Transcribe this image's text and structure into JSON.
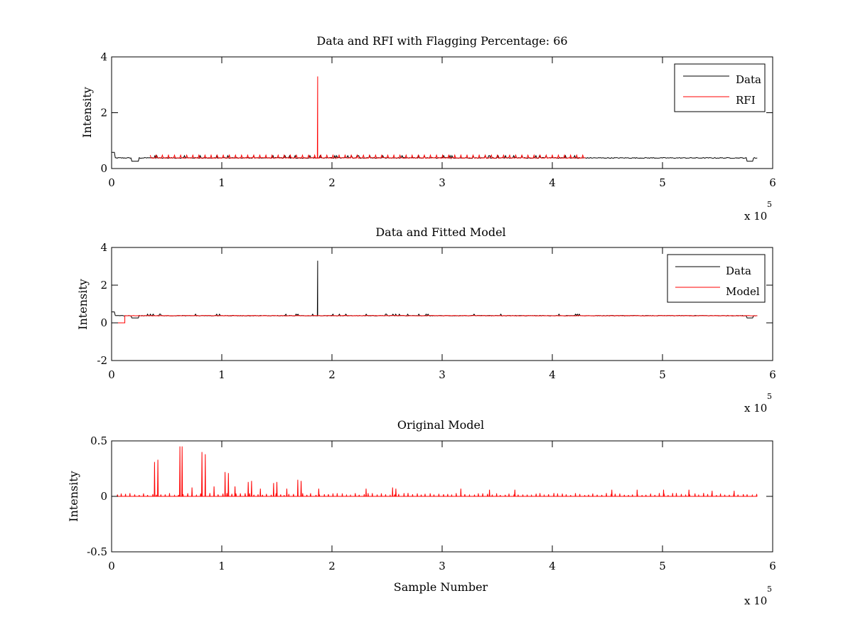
{
  "chart_data": [
    {
      "type": "line",
      "title": "Data and RFI with Flagging Percentage: 66",
      "xlabel": "",
      "ylabel": "Intensity",
      "xlim": [
        0,
        6
      ],
      "ylim": [
        0,
        4
      ],
      "xticks": [
        "0",
        "1",
        "2",
        "3",
        "4",
        "5",
        "6"
      ],
      "yticks": [
        "0",
        "2",
        "4"
      ],
      "x_multiplier": {
        "base": "x 10",
        "exponent": "5"
      },
      "legend": {
        "position": "top-right",
        "entries": [
          "Data",
          "RFI"
        ]
      },
      "series": [
        {
          "name": "Data",
          "color": "#000000",
          "kind": "data",
          "extent": [
            0,
            5.86
          ],
          "baseline": 0.38,
          "dip": true
        },
        {
          "name": "RFI",
          "color": "#ff0000",
          "kind": "rfi",
          "extent": [
            0.35,
            4.3
          ],
          "baseline": 0.38,
          "spike": {
            "x": 1.87,
            "y": 3.3
          }
        }
      ]
    },
    {
      "type": "line",
      "title": "Data and Fitted Model",
      "xlabel": "",
      "ylabel": "Intensity",
      "xlim": [
        0,
        6
      ],
      "ylim": [
        -2,
        4
      ],
      "xticks": [
        "0",
        "1",
        "2",
        "3",
        "4",
        "5",
        "6"
      ],
      "yticks": [
        "-2",
        "0",
        "2",
        "4"
      ],
      "x_multiplier": {
        "base": "x 10",
        "exponent": "5"
      },
      "legend": {
        "position": "top-right",
        "entries": [
          "Data",
          "Model"
        ]
      },
      "series": [
        {
          "name": "Data",
          "color": "#000000",
          "kind": "data",
          "extent": [
            0,
            5.86
          ],
          "baseline": 0.38,
          "dip": true,
          "spike": {
            "x": 1.87,
            "y": 3.3
          }
        },
        {
          "name": "Model",
          "color": "#ff0000",
          "kind": "model",
          "extent": [
            0,
            5.86
          ],
          "baseline": 0.38,
          "start_level": 0.0,
          "step_x": 0.12
        }
      ]
    },
    {
      "type": "line",
      "title": "Original Model",
      "xlabel": "Sample Number",
      "ylabel": "Intensity",
      "xlim": [
        0,
        6
      ],
      "ylim": [
        -0.5,
        0.5
      ],
      "xticks": [
        "0",
        "1",
        "2",
        "3",
        "4",
        "5",
        "6"
      ],
      "yticks": [
        "-0.5",
        "0",
        "0.5"
      ],
      "x_multiplier": {
        "base": "x 10",
        "exponent": "5"
      },
      "series": [
        {
          "name": "Original Model",
          "color": "#ff0000",
          "kind": "spikes",
          "extent": [
            0,
            5.86
          ],
          "baseline": 0.0,
          "peaks": [
            {
              "x": 0.39,
              "y": 0.31
            },
            {
              "x": 0.42,
              "y": 0.33
            },
            {
              "x": 0.62,
              "y": 0.45
            },
            {
              "x": 0.64,
              "y": 0.45
            },
            {
              "x": 0.82,
              "y": 0.4
            },
            {
              "x": 0.85,
              "y": 0.38
            },
            {
              "x": 1.03,
              "y": 0.22
            },
            {
              "x": 1.06,
              "y": 0.21
            },
            {
              "x": 1.24,
              "y": 0.13
            },
            {
              "x": 1.27,
              "y": 0.14
            },
            {
              "x": 1.47,
              "y": 0.12
            },
            {
              "x": 1.5,
              "y": 0.13
            },
            {
              "x": 1.69,
              "y": 0.15
            },
            {
              "x": 1.72,
              "y": 0.14
            },
            {
              "x": 0.73,
              "y": 0.08
            },
            {
              "x": 0.93,
              "y": 0.09
            },
            {
              "x": 1.12,
              "y": 0.09
            },
            {
              "x": 1.35,
              "y": 0.07
            },
            {
              "x": 1.59,
              "y": 0.07
            },
            {
              "x": 1.88,
              "y": 0.07
            },
            {
              "x": 2.31,
              "y": 0.07
            },
            {
              "x": 2.55,
              "y": 0.08
            },
            {
              "x": 2.58,
              "y": 0.07
            },
            {
              "x": 3.17,
              "y": 0.07
            },
            {
              "x": 3.43,
              "y": 0.06
            },
            {
              "x": 3.66,
              "y": 0.06
            },
            {
              "x": 4.54,
              "y": 0.06
            },
            {
              "x": 4.77,
              "y": 0.06
            },
            {
              "x": 5.01,
              "y": 0.06
            },
            {
              "x": 5.24,
              "y": 0.06
            },
            {
              "x": 5.45,
              "y": 0.05
            },
            {
              "x": 5.65,
              "y": 0.05
            }
          ],
          "small_peak_spacing": 0.04,
          "small_peak_height": 0.03
        }
      ]
    }
  ]
}
